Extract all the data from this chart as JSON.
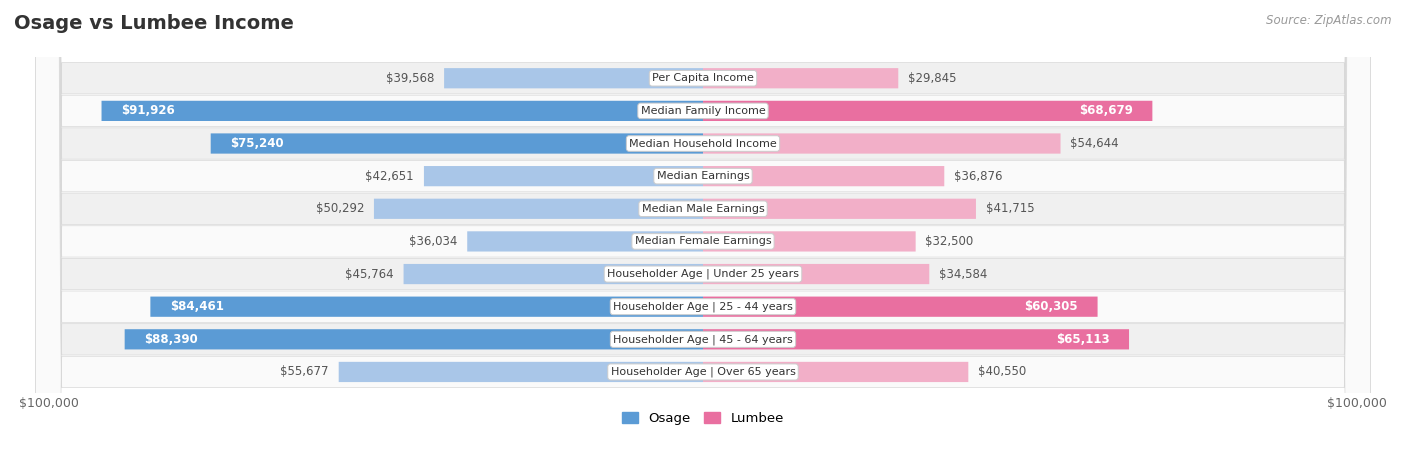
{
  "title": "Osage vs Lumbee Income",
  "source": "Source: ZipAtlas.com",
  "categories": [
    "Per Capita Income",
    "Median Family Income",
    "Median Household Income",
    "Median Earnings",
    "Median Male Earnings",
    "Median Female Earnings",
    "Householder Age | Under 25 years",
    "Householder Age | 25 - 44 years",
    "Householder Age | 45 - 64 years",
    "Householder Age | Over 65 years"
  ],
  "osage_values": [
    39568,
    91926,
    75240,
    42651,
    50292,
    36034,
    45764,
    84461,
    88390,
    55677
  ],
  "lumbee_values": [
    29845,
    68679,
    54644,
    36876,
    41715,
    32500,
    34584,
    60305,
    65113,
    40550
  ],
  "osage_labels": [
    "$39,568",
    "$91,926",
    "$75,240",
    "$42,651",
    "$50,292",
    "$36,034",
    "$45,764",
    "$84,461",
    "$88,390",
    "$55,677"
  ],
  "lumbee_labels": [
    "$29,845",
    "$68,679",
    "$54,644",
    "$36,876",
    "$41,715",
    "$32,500",
    "$34,584",
    "$60,305",
    "$65,113",
    "$40,550"
  ],
  "osage_color_full": "#5b9bd5",
  "osage_color_light": "#a9c6e8",
  "lumbee_color_full": "#e96fa0",
  "lumbee_color_light": "#f2afc8",
  "max_value": 100000,
  "background_color": "#ffffff",
  "row_bg_even": "#f0f0f0",
  "row_bg_odd": "#fafafa",
  "row_border": "#d8d8d8",
  "xlabel_left": "$100,000",
  "xlabel_right": "$100,000",
  "legend_osage": "Osage",
  "legend_lumbee": "Lumbee",
  "osage_full_threshold": 60000,
  "lumbee_full_threshold": 60000,
  "title_color": "#333333",
  "label_dark_color": "#555555",
  "label_white_color": "#ffffff"
}
